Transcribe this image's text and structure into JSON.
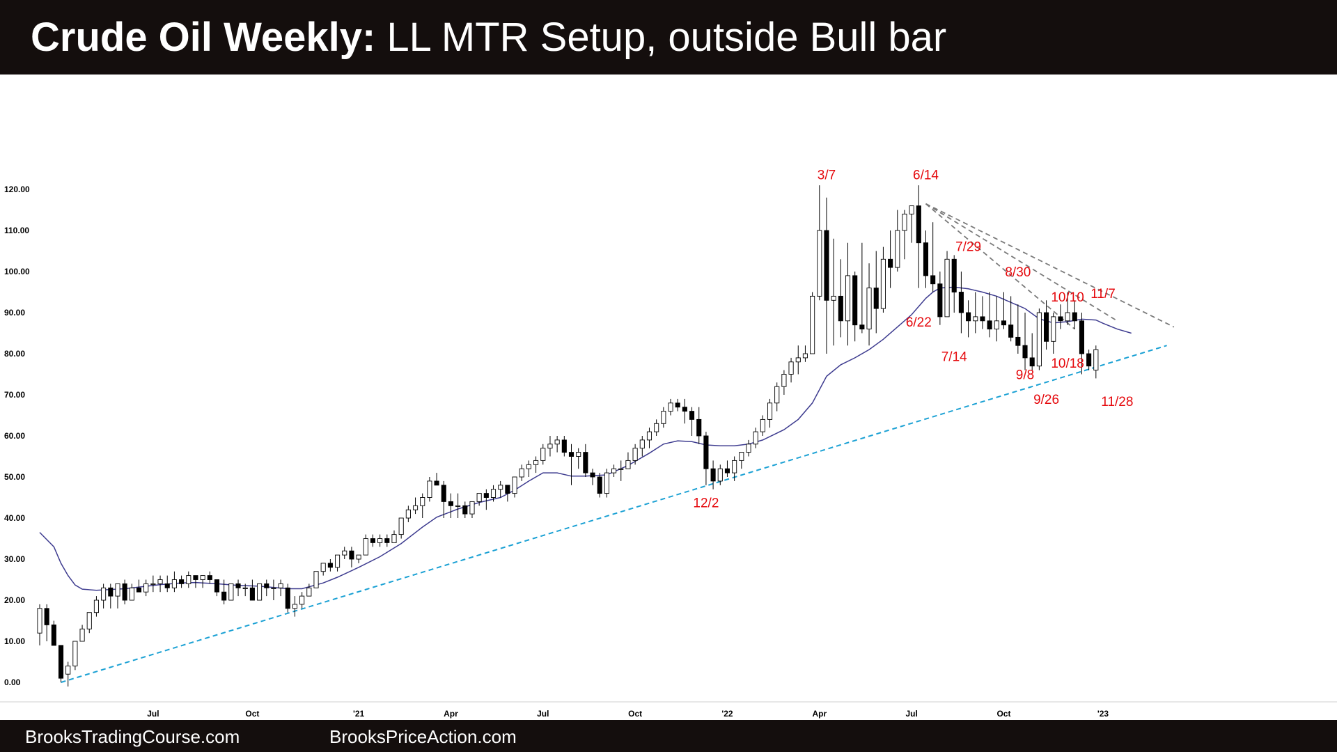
{
  "title": {
    "bold": "Crude Oil Weekly:",
    "rest": " LL MTR Setup, outside Bull bar"
  },
  "footer": {
    "left": "BrooksTradingCourse.com",
    "right": "BrooksPriceAction.com"
  },
  "colors": {
    "bull_body": "#ffffff",
    "bear_body": "#000000",
    "ema": "#3d3b8f",
    "trendline": "#1ba1d4",
    "bear_lines": "#7a7a7a",
    "annotation": "#e5080c"
  },
  "chart_data": {
    "type": "candlestick",
    "title": "Crude Oil Weekly: LL MTR Setup, outside Bull bar",
    "ylim": [
      0,
      120
    ],
    "y_ticks": [
      "0.00",
      "10.00",
      "20.00",
      "30.00",
      "40.00",
      "50.00",
      "60.00",
      "70.00",
      "80.00",
      "90.00",
      "100.00",
      "110.00",
      "120.00"
    ],
    "x_ticks": [
      {
        "label": "Jul",
        "bar": 16
      },
      {
        "label": "Oct",
        "bar": 30
      },
      {
        "label": "'21",
        "bar": 45
      },
      {
        "label": "Apr",
        "bar": 58
      },
      {
        "label": "Jul",
        "bar": 71
      },
      {
        "label": "Oct",
        "bar": 84
      },
      {
        "label": "'22",
        "bar": 97
      },
      {
        "label": "Apr",
        "bar": 110
      },
      {
        "label": "Jul",
        "bar": 123
      },
      {
        "label": "Oct",
        "bar": 136
      },
      {
        "label": "'23",
        "bar": 150
      }
    ],
    "ohlc": [
      [
        12,
        19,
        9,
        18
      ],
      [
        18,
        19,
        10,
        14
      ],
      [
        14,
        15,
        9,
        9
      ],
      [
        9,
        9,
        0,
        1
      ],
      [
        2,
        5,
        -1,
        4
      ],
      [
        4,
        10,
        3,
        10
      ],
      [
        10,
        14,
        10,
        13
      ],
      [
        13,
        17,
        12,
        17
      ],
      [
        17,
        21,
        16,
        20
      ],
      [
        20,
        24,
        18,
        23
      ],
      [
        23,
        24,
        18,
        21
      ],
      [
        21,
        24,
        18,
        24
      ],
      [
        24,
        25,
        19,
        20
      ],
      [
        20,
        24,
        20,
        23
      ],
      [
        23,
        25,
        22,
        22
      ],
      [
        22,
        25,
        21,
        24
      ],
      [
        24,
        26,
        22,
        24
      ],
      [
        24,
        26,
        22,
        25
      ],
      [
        24,
        26,
        22,
        23
      ],
      [
        23,
        27,
        22,
        25
      ],
      [
        25,
        26,
        23,
        24
      ],
      [
        24,
        27,
        23,
        26
      ],
      [
        26,
        26,
        23,
        25
      ],
      [
        25,
        26,
        23,
        26
      ],
      [
        26,
        27,
        24,
        25
      ],
      [
        25,
        25,
        21,
        22
      ],
      [
        22,
        25,
        19,
        20
      ],
      [
        20,
        24,
        20,
        24
      ],
      [
        24,
        25,
        21,
        23
      ],
      [
        23,
        24,
        21,
        23
      ],
      [
        23,
        25,
        20,
        20
      ],
      [
        20,
        24,
        20,
        24
      ],
      [
        24,
        25,
        21,
        23
      ],
      [
        23,
        25,
        20,
        23
      ],
      [
        23,
        25,
        21,
        24
      ],
      [
        23,
        24,
        17,
        18
      ],
      [
        18,
        21,
        16,
        19
      ],
      [
        19,
        22,
        18,
        21
      ],
      [
        21,
        24,
        21,
        23
      ],
      [
        23,
        27,
        23,
        27
      ],
      [
        27,
        29,
        26,
        29
      ],
      [
        29,
        30,
        27,
        28
      ],
      [
        28,
        31,
        27,
        31
      ],
      [
        31,
        33,
        30,
        32
      ],
      [
        32,
        33,
        28,
        30
      ],
      [
        30,
        31,
        29,
        31
      ],
      [
        31,
        36,
        31,
        35
      ],
      [
        35,
        36,
        33,
        34
      ],
      [
        34,
        36,
        33,
        35
      ],
      [
        35,
        36,
        33,
        34
      ],
      [
        34,
        37,
        34,
        36
      ],
      [
        36,
        40,
        35,
        40
      ],
      [
        40,
        43,
        39,
        42
      ],
      [
        42,
        45,
        41,
        43
      ],
      [
        43,
        46,
        40,
        45
      ],
      [
        45,
        50,
        44,
        49
      ],
      [
        49,
        51,
        48,
        48
      ],
      [
        48,
        49,
        40,
        44
      ],
      [
        44,
        46,
        40,
        43
      ],
      [
        43,
        46,
        40,
        43
      ],
      [
        43,
        44,
        40,
        41
      ],
      [
        41,
        44,
        40,
        44
      ],
      [
        44,
        46,
        43,
        46
      ],
      [
        46,
        47,
        42,
        45
      ],
      [
        45,
        48,
        44,
        47
      ],
      [
        47,
        49,
        45,
        48
      ],
      [
        48,
        48,
        44,
        46
      ],
      [
        46,
        50,
        45,
        50
      ],
      [
        50,
        53,
        49,
        52
      ],
      [
        52,
        54,
        50,
        53
      ],
      [
        53,
        55,
        51,
        54
      ],
      [
        54,
        58,
        53,
        57
      ],
      [
        57,
        60,
        55,
        58
      ],
      [
        58,
        60,
        56,
        59
      ],
      [
        59,
        60,
        55,
        56
      ],
      [
        56,
        58,
        48,
        55
      ],
      [
        55,
        57,
        52,
        56
      ],
      [
        56,
        58,
        50,
        51
      ],
      [
        51,
        52,
        48,
        50
      ],
      [
        50,
        51,
        45,
        46
      ],
      [
        46,
        52,
        45,
        51
      ],
      [
        51,
        53,
        50,
        52
      ],
      [
        52,
        54,
        49,
        52
      ],
      [
        52,
        56,
        52,
        54
      ],
      [
        54,
        58,
        53,
        57
      ],
      [
        57,
        60,
        55,
        59
      ],
      [
        59,
        62,
        57,
        61
      ],
      [
        61,
        64,
        60,
        63
      ],
      [
        63,
        67,
        62,
        66
      ],
      [
        66,
        69,
        65,
        68
      ],
      [
        68,
        69,
        66,
        67
      ],
      [
        67,
        69,
        63,
        66
      ],
      [
        66,
        67,
        60,
        64
      ],
      [
        64,
        67,
        58,
        60
      ],
      [
        60,
        61,
        48,
        52
      ],
      [
        52,
        54,
        47,
        49
      ],
      [
        49,
        53,
        48,
        52
      ],
      [
        52,
        54,
        50,
        51
      ],
      [
        51,
        55,
        49,
        54
      ],
      [
        54,
        56,
        52,
        56
      ],
      [
        56,
        59,
        55,
        58
      ],
      [
        58,
        62,
        57,
        61
      ],
      [
        61,
        65,
        60,
        64
      ],
      [
        64,
        69,
        62,
        68
      ],
      [
        68,
        73,
        66,
        72
      ],
      [
        72,
        76,
        70,
        75
      ],
      [
        75,
        79,
        73,
        78
      ],
      [
        78,
        82,
        75,
        79
      ],
      [
        79,
        82,
        78,
        80
      ],
      [
        80,
        95,
        80,
        94
      ],
      [
        94,
        121,
        93,
        110
      ],
      [
        110,
        118,
        80,
        93
      ],
      [
        93,
        108,
        82,
        94
      ],
      [
        94,
        103,
        84,
        88
      ],
      [
        88,
        107,
        82,
        99
      ],
      [
        99,
        100,
        83,
        87
      ],
      [
        87,
        107,
        85,
        86
      ],
      [
        86,
        102,
        82,
        96
      ],
      [
        96,
        105,
        85,
        91
      ],
      [
        91,
        106,
        90,
        103
      ],
      [
        103,
        110,
        96,
        101
      ],
      [
        101,
        115,
        100,
        110
      ],
      [
        110,
        115,
        103,
        114
      ],
      [
        114,
        116,
        107,
        116
      ],
      [
        116,
        121,
        96,
        107
      ],
      [
        107,
        110,
        96,
        99
      ],
      [
        99,
        112,
        95,
        97
      ],
      [
        97,
        100,
        87,
        89
      ],
      [
        89,
        105,
        89,
        103
      ],
      [
        103,
        104,
        90,
        95
      ],
      [
        95,
        100,
        85,
        90
      ],
      [
        90,
        93,
        84,
        88
      ],
      [
        88,
        95,
        85,
        89
      ],
      [
        89,
        94,
        86,
        88
      ],
      [
        88,
        95,
        84,
        86
      ],
      [
        86,
        94,
        83,
        88
      ],
      [
        88,
        95,
        86,
        87
      ],
      [
        87,
        94,
        83,
        84
      ],
      [
        84,
        92,
        80,
        82
      ],
      [
        82,
        90,
        76,
        79
      ],
      [
        79,
        85,
        76,
        77
      ],
      [
        77,
        91,
        76,
        90
      ],
      [
        90,
        93,
        81,
        83
      ],
      [
        83,
        90,
        80,
        89
      ],
      [
        89,
        92,
        86,
        88
      ],
      [
        88,
        95,
        87,
        90
      ],
      [
        90,
        93,
        86,
        88
      ],
      [
        88,
        90,
        75,
        80
      ],
      [
        80,
        81,
        76,
        77
      ],
      [
        76,
        82,
        74,
        81
      ]
    ],
    "ema": [
      [
        0,
        36.5
      ],
      [
        2,
        33
      ],
      [
        3,
        29
      ],
      [
        4,
        26
      ],
      [
        5,
        23.7
      ],
      [
        6,
        22.7
      ],
      [
        8,
        22.4
      ],
      [
        12,
        22.8
      ],
      [
        17,
        23.8
      ],
      [
        20,
        24.2
      ],
      [
        22,
        24.3
      ],
      [
        25,
        24
      ],
      [
        28,
        23.6
      ],
      [
        31,
        23.4
      ],
      [
        35,
        22.8
      ],
      [
        37,
        22.8
      ],
      [
        40,
        24.2
      ],
      [
        42,
        25.6
      ],
      [
        45,
        28
      ],
      [
        48,
        30.6
      ],
      [
        51,
        33.8
      ],
      [
        54,
        37.8
      ],
      [
        56,
        40.2
      ],
      [
        59,
        42.2
      ],
      [
        62,
        43.8
      ],
      [
        65,
        45
      ],
      [
        67,
        46.8
      ],
      [
        69,
        49
      ],
      [
        71,
        51
      ],
      [
        73,
        51
      ],
      [
        75,
        50.2
      ],
      [
        77,
        50.2
      ],
      [
        80,
        50.5
      ],
      [
        83,
        52.8
      ],
      [
        86,
        55.8
      ],
      [
        88,
        58
      ],
      [
        90,
        58.8
      ],
      [
        92,
        58.6
      ],
      [
        94,
        57.8
      ],
      [
        96,
        57.6
      ],
      [
        98,
        57.6
      ],
      [
        100,
        58
      ],
      [
        102,
        59
      ],
      [
        105,
        61.5
      ],
      [
        107,
        64
      ],
      [
        109,
        68
      ],
      [
        111,
        74.5
      ],
      [
        113,
        77.3
      ],
      [
        115,
        79
      ],
      [
        117,
        81
      ],
      [
        119,
        83.5
      ],
      [
        121,
        86.5
      ],
      [
        123,
        89.5
      ],
      [
        124,
        91.5
      ],
      [
        125,
        93.5
      ],
      [
        126,
        95
      ],
      [
        127,
        96
      ],
      [
        129,
        96.2
      ],
      [
        131,
        95.8
      ],
      [
        133,
        95
      ],
      [
        135,
        94
      ],
      [
        137,
        92.5
      ],
      [
        139,
        91
      ],
      [
        141,
        88.5
      ],
      [
        143,
        87.5
      ],
      [
        145,
        87.8
      ],
      [
        147,
        88.4
      ],
      [
        149,
        88.2
      ],
      [
        150,
        87.4
      ],
      [
        152,
        86
      ],
      [
        154,
        85
      ]
    ],
    "trendline": [
      [
        3,
        0
      ],
      [
        159,
        82
      ]
    ],
    "bear_lines": [
      {
        "from": [
          125,
          116.5
        ],
        "to": [
          146,
          86
        ]
      },
      {
        "from": [
          125,
          116.5
        ],
        "to": [
          152,
          88
        ]
      },
      {
        "from": [
          125,
          116.5
        ],
        "to": [
          160,
          86.5
        ]
      }
    ],
    "annotations": [
      {
        "text": "3/7",
        "bar": 111,
        "value": 122.5
      },
      {
        "text": "6/14",
        "bar": 125,
        "value": 122.5
      },
      {
        "text": "7/29",
        "bar": 131,
        "value": 105
      },
      {
        "text": "8/30",
        "bar": 138,
        "value": 98.8
      },
      {
        "text": "10/10",
        "bar": 145,
        "value": 92.7
      },
      {
        "text": "11/7",
        "bar": 150,
        "value": 93.6
      },
      {
        "text": "6/22",
        "bar": 124,
        "value": 86.6
      },
      {
        "text": "7/14",
        "bar": 129,
        "value": 78.2
      },
      {
        "text": "9/8",
        "bar": 139,
        "value": 73.8
      },
      {
        "text": "10/18",
        "bar": 145,
        "value": 76.6
      },
      {
        "text": "9/26",
        "bar": 142,
        "value": 67.8
      },
      {
        "text": "11/28",
        "bar": 152,
        "value": 67.3
      },
      {
        "text": "12/2",
        "bar": 94,
        "value": 42.6
      }
    ]
  }
}
